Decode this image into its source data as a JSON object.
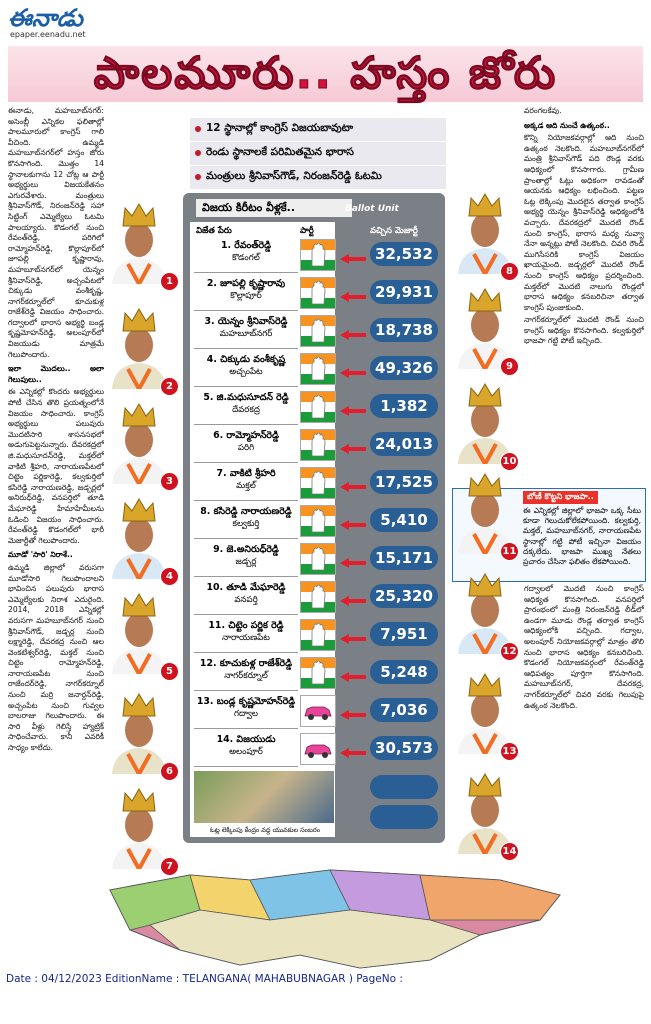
{
  "masthead": {
    "logo": "ఈనాడు",
    "url": "epaper.eenadu.net"
  },
  "headline": "పాలమూరు.. హస్తం జోరు",
  "bullets": [
    "12 స్థానాల్లో కాంగ్రెస్‌ విజయబావుటా",
    "రెండు స్థానాలకే పరిమితమైన భారాస",
    "మంత్రులు శ్రీనివాస్‌గౌడ్‌, నిరంజన్‌రెడ్డి ఓటమి"
  ],
  "table": {
    "title": "విజయ కిరీటం వీళ్లకే..",
    "unit": "Ballot Unit",
    "headers": [
      "విజేత పేరు",
      "పార్టీ",
      "వచ్చిన మెజార్టీ"
    ],
    "rows": [
      {
        "name": "1. రేవంత్‌రెడ్డి",
        "place": "కొడంగల్‌",
        "party": "congress",
        "majority": "32,532"
      },
      {
        "name": "2. జూపల్లి కృష్ణారావు",
        "place": "కొల్లాపూర్‌",
        "party": "congress",
        "majority": "29,931"
      },
      {
        "name": "3. యెన్నం శ్రీనివాస్‌రెడ్డి",
        "place": "మహబూబ్‌నగర్‌",
        "party": "congress",
        "majority": "18,738"
      },
      {
        "name": "4. చిక్కుడు వంశీకృష్ణ",
        "place": "అచ్చంపేట",
        "party": "congress",
        "majority": "49,326"
      },
      {
        "name": "5. జి.మధుసూదన్‌ రెడ్డి",
        "place": "దేవరకద్ర",
        "party": "congress",
        "majority": "1,382"
      },
      {
        "name": "6. రామ్మోహన్‌రెడ్డి",
        "place": "పరిగి",
        "party": "congress",
        "majority": "24,013"
      },
      {
        "name": "7. వాకిటి శ్రీహరి",
        "place": "మక్తల్‌",
        "party": "congress",
        "majority": "17,525"
      },
      {
        "name": "8. కసిరెడ్డి నారాయణరెడ్డి",
        "place": "కల్వకుర్తి",
        "party": "congress",
        "majority": "5,410"
      },
      {
        "name": "9. జె.అనిరుధ్‌రెడ్డి",
        "place": "జడ్చర్ల",
        "party": "congress",
        "majority": "15,171"
      },
      {
        "name": "10. తూడి మేఘారెడ్డి",
        "place": "వనపర్తి",
        "party": "congress",
        "majority": "25,320"
      },
      {
        "name": "11. చిట్టెం పర్ణిక రెడ్డి",
        "place": "నారాయణపేట",
        "party": "congress",
        "majority": "7,951"
      },
      {
        "name": "12. కూచుకుళ్ల రాజేశ్‌రెడ్డి",
        "place": "నాగర్‌కర్నూల్‌",
        "party": "congress",
        "majority": "5,248"
      },
      {
        "name": "13. బండ్ల కృష్ణమోహన్‌రెడ్డి",
        "place": "గద్వాల",
        "party": "brs",
        "majority": "7,036"
      },
      {
        "name": "14. విజయుడు",
        "place": "అలంపూర్‌",
        "party": "brs",
        "majority": "30,573"
      }
    ],
    "photo_caption": "ఓట్ల లెక్కింపు కేంద్రం వద్ద యువకుల సంబరం"
  },
  "badges": [
    "1",
    "2",
    "3",
    "4",
    "5",
    "6",
    "7",
    "8",
    "9",
    "10",
    "11",
    "12",
    "13",
    "14"
  ],
  "left_column": [
    {
      "kind": "body",
      "text": "ఈనాడు, మహబూబ్‌నగర్‌: అసెంబ్లీ ఎన్నికల ఫలితాల్లో పాలమూరులో కాంగ్రెస్‌ గాలి వీచింది. ఉమ్మడి మహబూబ్‌నగర్‌లో హస్తం జోరు కొనసాగింది. మొత్తం 14 స్థానాలకుగాను 12 చోట్ల ఆ పార్టీ అభ్యర్థులు విజయకేతనం ఎగురవేశారు. మంత్రులు శ్రీనివాస్‌గౌడ్‌, నిరంజన్‌రెడ్డి సహా సిట్టింగ్‌ ఎమ్మెల్యేలు ఓటమి పాలయ్యారు. కొడంగల్‌ నుంచి రేవంత్‌రెడ్డి, పరిగిలో రామ్మోహన్‌రెడ్డి, కొల్లాపూర్‌లో జూపల్లి కృష్ణారావు, మహబూబ్‌నగర్‌లో యెన్నం శ్రీనివాస్‌రెడ్డి, అచ్చంపేటలో చిక్కుడు వంశీకృష్ణ, నాగర్‌కర్నూల్‌లో కూచుకుళ్ల రాజేశ్‌రెడ్డి విజయం సాధించారు. గద్వాలలో భారాస అభ్యర్థి బండ్ల కృష్ణమోహన్‌రెడ్డి, అలంపూర్‌లో విజయుడు మాత్రమే గెలుపొందారు."
    },
    {
      "kind": "head",
      "text": "ఇలా మొదలు.. అలా గెలుపులు.."
    },
    {
      "kind": "body",
      "text": "ఈ ఎన్నికల్లో కొందరు అభ్యర్థులు పోటీ చేసిన తొలి ప్రయత్నంలోనే విజయం సాధించారు. కాంగ్రెస్‌ అభ్యర్థులు పలువురు మొదటిసారి శాసనసభలో అడుగుపెట్టనున్నారు. దేవరకద్రలో జి.మధుసూదన్‌రెడ్డి, మక్తల్‌లో వాకిటి శ్రీహరి, నారాయణపేటలో చిట్టెం పర్ణికారెడ్డి, కల్వకుర్తిలో కసిరెడ్డి నారాయణరెడ్డి, జడ్చర్లలో అనిరుధ్‌రెడ్డి, వనపర్తిలో తూడి మేఘారెడ్డి హేమాహేమీలను ఓడించి విజయం సాధించారు. రేవంత్‌రెడ్డి కొడంగల్‌లో భారీ మెజార్టీతో గెలుపొందారు."
    },
    {
      "kind": "head",
      "text": "మూడో 'సారి' నిరాశే.."
    },
    {
      "kind": "body",
      "text": "ఉమ్మడి జిల్లాలో వరుసగా మూడోసారి గెలుపొందాలని భావించిన పలువురు భారాస ఎమ్మెల్యేలకు నిరాశ ఎదురైంది. 2014, 2018 ఎన్నికల్లో వరుసగా మహబూబ్‌నగర్‌ నుంచి శ్రీనివాస్‌గౌడ్‌, జడ్చర్ల నుంచి లక్ష్మారెడ్డి, దేవరకద్ర నుంచి ఆల వెంకటేశ్వర్‌రెడ్డి, మక్తల్‌ నుంచి చిట్టెం రామ్మోహన్‌రెడ్డి, నారాయణపేట నుంచి రాజేందర్‌రెడ్డి, నాగర్‌కర్నూల్‌ నుంచి మర్రి జనార్దన్‌రెడ్డి, అచ్చంపేట నుంచి గువ్వల బాలరాజు గెలుపొందారు. ఈ సారి వీళ్లు గెలిస్తే హ్యాట్రిక్‌ సాధించేవారు. కానీ ఎవరికీ సాధ్యం కాలేదు."
    }
  ],
  "right_column": [
    {
      "kind": "body",
      "text": "వరంగలకేవు."
    },
    {
      "kind": "head",
      "text": "అక్కడ ఆది నుంచే ఉత్కంఠ.."
    },
    {
      "kind": "body",
      "text": "కొన్ని నియోజకవర్గాల్లో ఆది నుంచి ఉత్కంఠ నెలకొంది. మహబూబ్‌నగర్‌లో మంత్రి శ్రీనివాస్‌గౌడ్‌ పది రౌండ్ల వరకు ఆధిక్యంలో కొనసాగారు. గ్రామీణ ప్రాంతాల్లో ఓట్లు అధికంగా రావడంతో ఆయనకు ఆధిక్యం లభించింది. పట్టణ ఓట్ల లెక్కింపు మొదలైన తర్వాత కాంగ్రెస్‌ అభ్యర్థి యెన్నం శ్రీనివాస్‌రెడ్డి ఆధిక్యంలోకి వచ్చారు. దేవరకద్రలో మొదటి రౌండ్‌ నుంచి కాంగ్రెస్‌, భారాస మధ్య నువ్వా నేనా అన్నట్లు పోటీ నెలకొంది. చివరి రౌండ్‌ ముగిసేసరికి కాంగ్రెస్‌ విజయం ఖాయమైంది. జడ్చర్లలో మొదటి రౌండ్‌ నుంచి కాంగ్రెస్‌ ఆధిక్యం ప్రదర్శించింది. మక్తల్‌లో మొదటి నాలుగు రౌండ్లలో భారాస ఆధిక్యం కనబరిచినా తర్వాత కాంగ్రెస్‌ పుంజుకుంది."
    },
    {
      "kind": "body",
      "text": "నాగర్‌కర్నూల్‌లో మొదటి రౌండ్‌ నుంచి కాంగ్రెస్‌ ఆధిక్యం కొనసాగింది. కల్వకుర్తిలో భాజపా గట్టి పోటీ ఇచ్చింది."
    }
  ],
  "right_column_2": [
    {
      "kind": "body",
      "text": "గద్వాలలో మొదటి నుంచి కాంగ్రెస్‌ ఆధిక్యత కొనసాగింది. వనపర్తిలో ప్రారంభంలో మంత్రి నిరంజన్‌రెడ్డి లీడ్‌లో ఉండగా మూడు రౌండ్ల తర్వాత కాంగ్రెస్‌ ఆధిక్యంలోకి వచ్చింది. గద్వాల, అలంపూర్‌ నియోజకవర్గాల్లో మాత్రం తొలి నుంచి భారాస ఆధిక్యం కనబరిచింది. కొడంగల్‌ నియోజకవర్గంలో రేవంత్‌రెడ్డి ఆధిపత్యం పూర్తిగా కొనసాగింది. మహబూబ్‌నగర్‌, దేవరకద్ర, నాగర్‌కర్నూల్‌లో చివరి వరకు గెలుపుపై ఉత్కంఠ నెలకొంది."
    }
  ],
  "bjp_box": {
    "heading": "బోణీ కొట్టని భాజపా..",
    "text": "ఈ ఎన్నికల్లో జిల్లాలో భాజపా ఒక్క సీటు కూడా గెలుచుకోలేకపోయింది. కల్వకుర్తి, మక్తల్‌, మహబూబ్‌నగర్‌, నారాయణపేట స్థానాల్లో గట్టి పోటీ ఇచ్చినా విజయం దక్కలేదు. భాజపా ముఖ్య నేతలు ప్రచారం చేసినా ఫలితం లేకపోయింది."
  },
  "footer": "Date : 04/12/2023 EditionName : TELANGANA( MAHABUBNAGAR ) PageNo :"
}
